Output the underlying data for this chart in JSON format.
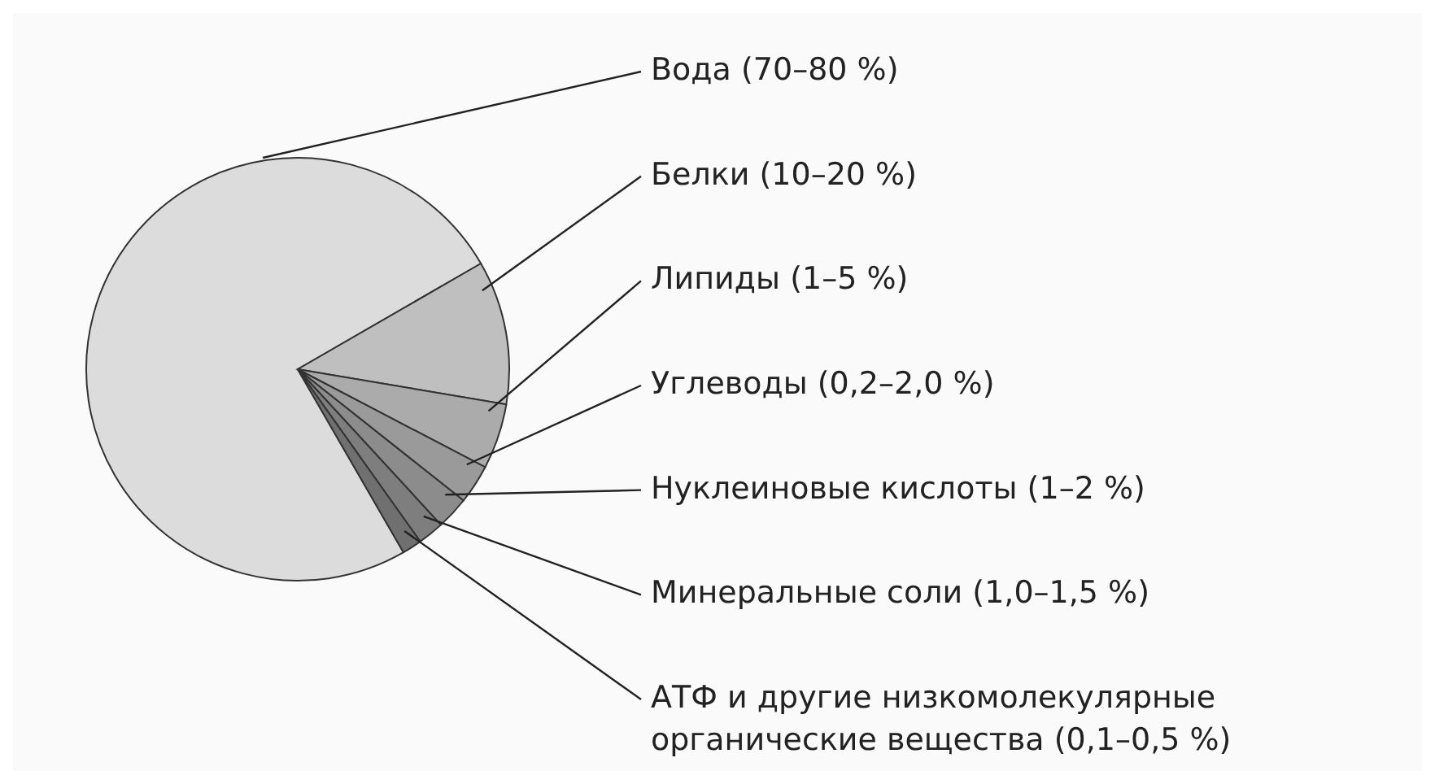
{
  "chart_data": {
    "type": "pie",
    "categories": [
      "Вода (70–80 %)",
      "Белки (10–20 %)",
      "Липиды (1–5 %)",
      "Углеводы (0,2–2,0 %)",
      "Нуклеиновые кислоты (1–2 %)",
      "Минеральные соли (1,0–1,5 %)",
      "АТФ и другие низкомолекулярные органические вещества (0,1–0,5 %)"
    ],
    "values": [
      75,
      11,
      5,
      3,
      2.5,
      2,
      1.5
    ],
    "colors": [
      "#dcdcdc",
      "#bfbfbf",
      "#ababab",
      "#9a9a9a",
      "#8c8c8c",
      "#7e7e7e",
      "#707070"
    ]
  }
}
